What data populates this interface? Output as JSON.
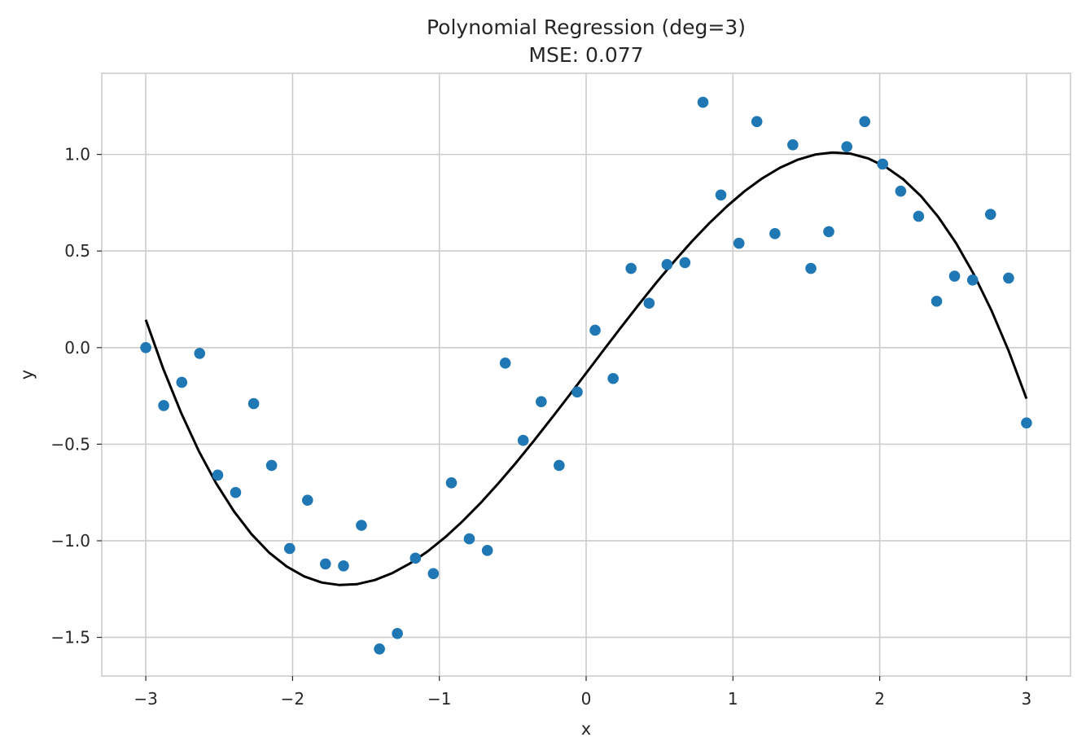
{
  "chart_data": {
    "type": "scatter",
    "title": "Polynomial Regression (deg=3)",
    "subtitle": "MSE: 0.077",
    "xlabel": "x",
    "ylabel": "y",
    "xlim": [
      -3.3,
      3.3
    ],
    "ylim": [
      -1.7,
      1.42
    ],
    "grid": true,
    "x_ticks": [
      -3,
      -2,
      -1,
      0,
      1,
      2,
      3
    ],
    "x_tick_labels": [
      "−3",
      "−2",
      "−1",
      "0",
      "1",
      "2",
      "3"
    ],
    "y_ticks": [
      -1.5,
      -1.0,
      -0.5,
      0.0,
      0.5,
      1.0
    ],
    "y_tick_labels": [
      "−1.5",
      "−1.0",
      "−0.5",
      "0.0",
      "0.5",
      "1.0"
    ],
    "series": [
      {
        "type": "scatter",
        "color": "#1f77b4",
        "points": [
          [
            -3.0,
            0.0
          ],
          [
            -2.878,
            -0.3
          ],
          [
            -2.755,
            -0.18
          ],
          [
            -2.633,
            -0.03
          ],
          [
            -2.51,
            -0.66
          ],
          [
            -2.388,
            -0.75
          ],
          [
            -2.265,
            -0.29
          ],
          [
            -2.143,
            -0.61
          ],
          [
            -2.02,
            -1.04
          ],
          [
            -1.898,
            -0.79
          ],
          [
            -1.776,
            -1.12
          ],
          [
            -1.653,
            -1.13
          ],
          [
            -1.531,
            -0.92
          ],
          [
            -1.408,
            -1.56
          ],
          [
            -1.286,
            -1.48
          ],
          [
            -1.163,
            -1.09
          ],
          [
            -1.041,
            -1.17
          ],
          [
            -0.918,
            -0.7
          ],
          [
            -0.796,
            -0.99
          ],
          [
            -0.673,
            -1.05
          ],
          [
            -0.551,
            -0.08
          ],
          [
            -0.429,
            -0.48
          ],
          [
            -0.306,
            -0.28
          ],
          [
            -0.184,
            -0.61
          ],
          [
            -0.061,
            -0.23
          ],
          [
            0.061,
            0.09
          ],
          [
            0.184,
            -0.16
          ],
          [
            0.306,
            0.41
          ],
          [
            0.429,
            0.23
          ],
          [
            0.551,
            0.43
          ],
          [
            0.673,
            0.44
          ],
          [
            0.796,
            1.27
          ],
          [
            0.918,
            0.79
          ],
          [
            1.041,
            0.54
          ],
          [
            1.163,
            1.17
          ],
          [
            1.286,
            0.59
          ],
          [
            1.408,
            1.05
          ],
          [
            1.531,
            0.41
          ],
          [
            1.653,
            0.6
          ],
          [
            1.776,
            1.04
          ],
          [
            1.898,
            1.17
          ],
          [
            2.02,
            0.95
          ],
          [
            2.143,
            0.81
          ],
          [
            2.265,
            0.68
          ],
          [
            2.388,
            0.24
          ],
          [
            2.51,
            0.37
          ],
          [
            2.633,
            0.35
          ],
          [
            2.755,
            0.69
          ],
          [
            2.878,
            0.36
          ],
          [
            3.0,
            -0.39
          ]
        ]
      },
      {
        "type": "line",
        "color": "#000000",
        "coefficients": [
          -0.132,
          1.002,
          0.008,
          -0.1189
        ]
      }
    ]
  }
}
